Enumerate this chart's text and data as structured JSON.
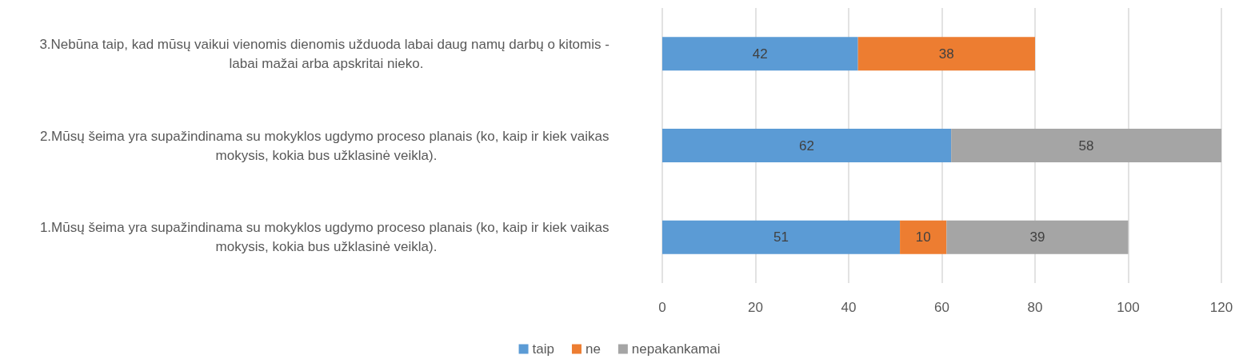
{
  "chart_data": {
    "type": "bar",
    "orientation": "horizontal",
    "stacked": true,
    "categories": [
      "3.Nebūna taip, kad mūsų vaikui vienomis dienomis užduoda labai daug namų darbų o kitomis - labai mažai arba apskritai nieko.",
      "2.Mūsų šeima yra supažindinama su mokyklos ugdymo proceso planais (ko, kaip ir kiek vaikas mokysis, kokia bus užklasinė veikla).",
      "1.Mūsų šeima yra supažindinama su mokyklos ugdymo proceso planais (ko, kaip ir kiek vaikas mokysis, kokia bus užklasinė veikla)."
    ],
    "series": [
      {
        "name": "taip",
        "color": "#5b9bd5",
        "values": [
          42,
          62,
          51
        ]
      },
      {
        "name": "ne",
        "color": "#ed7d31",
        "values": [
          38,
          null,
          10
        ]
      },
      {
        "name": "nepakankamai",
        "color": "#a5a5a5",
        "values": [
          null,
          58,
          39
        ]
      }
    ],
    "xlim": [
      0,
      120
    ],
    "xticks": [
      0,
      20,
      40,
      60,
      80,
      100,
      120
    ],
    "grid": "x",
    "legend": "bottom",
    "data_labels": true
  }
}
